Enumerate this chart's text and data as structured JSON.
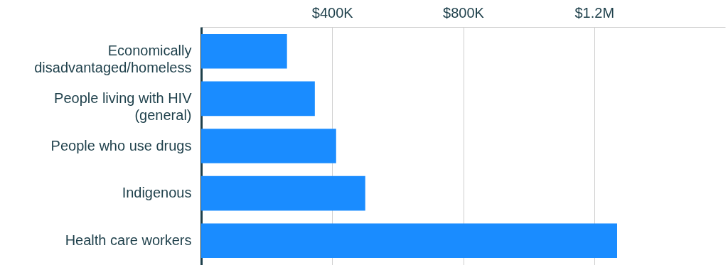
{
  "chart_data": {
    "type": "bar",
    "orientation": "horizontal",
    "categories": [
      "Economically disadvantaged/homeless",
      "People living with HIV (general)",
      "People who use drugs",
      "Indigenous",
      "Health care workers"
    ],
    "values": [
      262000,
      347000,
      412000,
      501000,
      1270000
    ],
    "color": "#1a8cff",
    "xlim": [
      0,
      1600000
    ],
    "xticks": [
      {
        "value": 400000,
        "label": "$400K"
      },
      {
        "value": 800000,
        "label": "$800K"
      },
      {
        "value": 1200000,
        "label": "$1.2M"
      }
    ],
    "grid": "x"
  }
}
